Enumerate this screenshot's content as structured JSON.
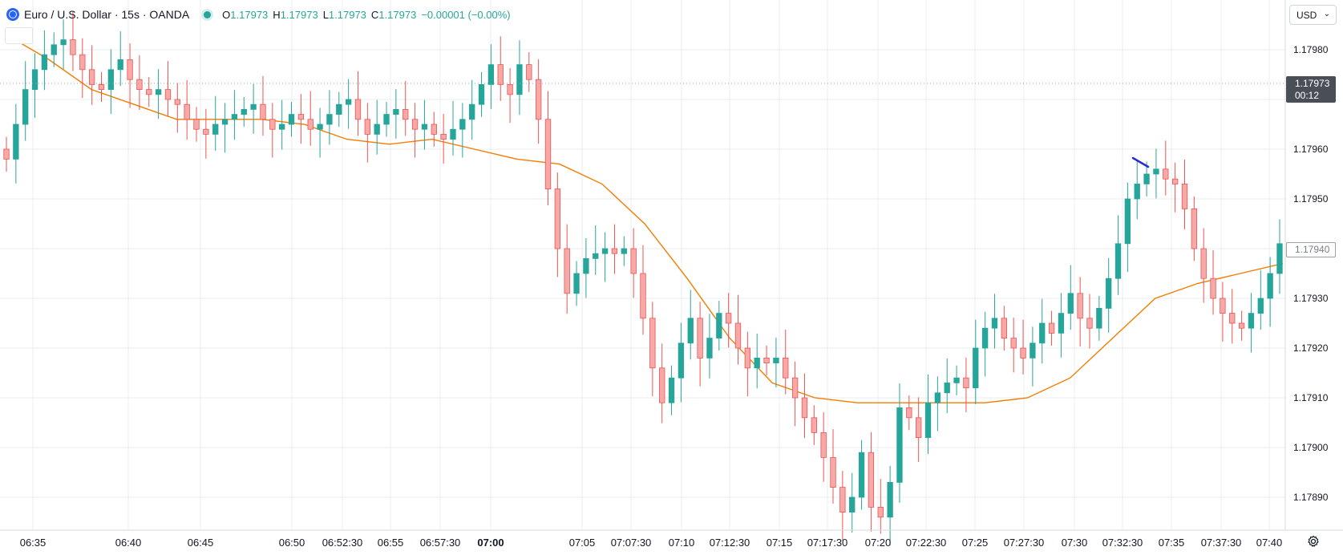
{
  "legend": {
    "symbol": "Euro / U.S. Dollar · 15s · OANDA",
    "open_label": "O",
    "open_value": "1.17973",
    "high_label": "H",
    "high_value": "1.17973",
    "low_label": "L",
    "low_value": "1.17973",
    "close_label": "C",
    "close_value": "1.17973",
    "change_value": "−0.00001 (−0.00%)"
  },
  "price_axis": {
    "currency": "USD",
    "last_price": "1.17973",
    "countdown": "00:12",
    "ma_price": "1.17940"
  },
  "colors": {
    "up": "#26a69a",
    "down": "#ef5350",
    "ma_line": "#f57c00",
    "drawing": "#2a2ed0"
  },
  "icons": [
    "globe-icon",
    "chevron-down-icon",
    "settings-icon"
  ],
  "chart_data": {
    "type": "candlestick",
    "title": "Euro / U.S. Dollar · 15s · OANDA",
    "ylim": [
      1.17884,
      1.17984
    ],
    "y_ticks": [
      "1.17980",
      "1.17970",
      "1.17960",
      "1.17950",
      "1.17940",
      "1.17930",
      "1.17920",
      "1.17910",
      "1.17900",
      "1.17890"
    ],
    "x_ticks": [
      "06:35",
      "06:40",
      "06:45",
      "06:50",
      "06:52:30",
      "06:55",
      "06:57:30",
      "07:00",
      "07:05",
      "07:07:30",
      "07:10",
      "07:12:30",
      "07:15",
      "07:17:30",
      "07:20",
      "07:22:30",
      "07:25",
      "07:27:30",
      "07:30",
      "07:32:30",
      "07:35",
      "07:37:30",
      "07:40"
    ],
    "grid": true,
    "series": [
      {
        "name": "EURUSD",
        "values": [
          1.17958,
          1.17965,
          1.17972,
          1.17976,
          1.17979,
          1.17981,
          1.17982,
          1.17979,
          1.17976,
          1.17973,
          1.17972,
          1.17976,
          1.17978,
          1.17974,
          1.17972,
          1.17971,
          1.17972,
          1.1797,
          1.17969,
          1.17966,
          1.17964,
          1.17963,
          1.17965,
          1.17966,
          1.17967,
          1.17968,
          1.17969,
          1.17966,
          1.17964,
          1.17965,
          1.17967,
          1.17966,
          1.17964,
          1.17965,
          1.17967,
          1.17969,
          1.1797,
          1.17966,
          1.17963,
          1.17965,
          1.17967,
          1.17968,
          1.17966,
          1.17964,
          1.17965,
          1.17963,
          1.17962,
          1.17964,
          1.17966,
          1.17969,
          1.17973,
          1.17977,
          1.17973,
          1.17971,
          1.17977,
          1.17974,
          1.17966,
          1.17952,
          1.1794,
          1.17931,
          1.17935,
          1.17938,
          1.17939,
          1.1794,
          1.17939,
          1.1794,
          1.17935,
          1.17926,
          1.17916,
          1.17909,
          1.17914,
          1.17921,
          1.17926,
          1.17918,
          1.17922,
          1.17927,
          1.17925,
          1.1792,
          1.17916,
          1.17918,
          1.17917,
          1.17918,
          1.17914,
          1.1791,
          1.17906,
          1.17903,
          1.17898,
          1.17892,
          1.17887,
          1.1789,
          1.17899,
          1.17888,
          1.17886,
          1.17893,
          1.17908,
          1.17906,
          1.17902,
          1.17909,
          1.17911,
          1.17913,
          1.17914,
          1.17912,
          1.1792,
          1.17924,
          1.17926,
          1.17922,
          1.1792,
          1.17918,
          1.17921,
          1.17925,
          1.17923,
          1.17927,
          1.17931,
          1.17926,
          1.17924,
          1.17928,
          1.17934,
          1.17941,
          1.1795,
          1.17953,
          1.17955,
          1.17956,
          1.17954,
          1.17953,
          1.17948,
          1.1794,
          1.17934,
          1.1793,
          1.17927,
          1.17925,
          1.17924,
          1.17927,
          1.1793,
          1.17935,
          1.17941
        ]
      },
      {
        "name": "MA",
        "values": [
          1.17983,
          1.17978,
          1.17972,
          1.17969,
          1.17966,
          1.17966,
          1.17966,
          1.17965,
          1.17962,
          1.17961,
          1.17962,
          1.1796,
          1.17958,
          1.17957,
          1.17953,
          1.17945,
          1.17934,
          1.17922,
          1.17913,
          1.1791,
          1.17909,
          1.17909,
          1.17909,
          1.17909,
          1.1791,
          1.17914,
          1.17922,
          1.1793,
          1.17933,
          1.17935,
          1.17937
        ]
      }
    ]
  }
}
